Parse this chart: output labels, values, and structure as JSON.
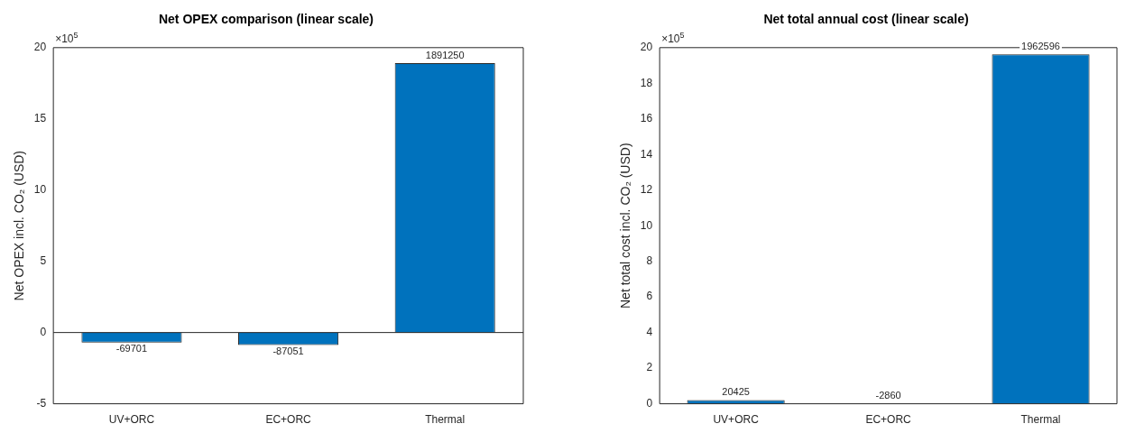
{
  "chart_data": [
    {
      "type": "bar",
      "title": "Net OPEX comparison (linear scale)",
      "ylabel": "Net OPEX incl. CO₂ (USD)",
      "categories": [
        "UV+ORC",
        "EC+ORC",
        "Thermal"
      ],
      "values": [
        -0.69701,
        -0.87051,
        18.9125
      ],
      "color": "#0072bd",
      "ylim": [
        -5,
        20
      ],
      "yticks": [
        -5,
        0,
        5,
        10,
        15,
        20
      ],
      "annotations": [
        "×10$^{5}$",
        {
          "text": "-69701",
          "x": "UV+ORC",
          "y": -0.7
        },
        {
          "text": "-87051",
          "x": "EC+ORC",
          "y": -0.87
        },
        {
          "text": "1891250",
          "x": "Thermal",
          "y": 18.9
        }
      ]
    },
    {
      "type": "bar",
      "title": "Net total annual cost (linear scale)",
      "ylabel": "Net total cost incl. CO₂ (USD)",
      "categories": [
        "UV+ORC",
        "EC+ORC",
        "Thermal"
      ],
      "values": [
        0.20425,
        null,
        19.62596
      ],
      "color": "#0072bd",
      "ylim": [
        0,
        20
      ],
      "yticks": [
        0,
        2,
        4,
        6,
        8,
        10,
        12,
        14,
        16,
        18,
        20
      ],
      "annotations": [
        "×10$^{5}$",
        {
          "text": "20425",
          "x": "UV+ORC",
          "y": 0.2
        },
        {
          "text": "-2860",
          "x": "EC+ORC"
        },
        {
          "text": "1962596",
          "x": "Thermal",
          "y": 19.6
        }
      ]
    }
  ]
}
